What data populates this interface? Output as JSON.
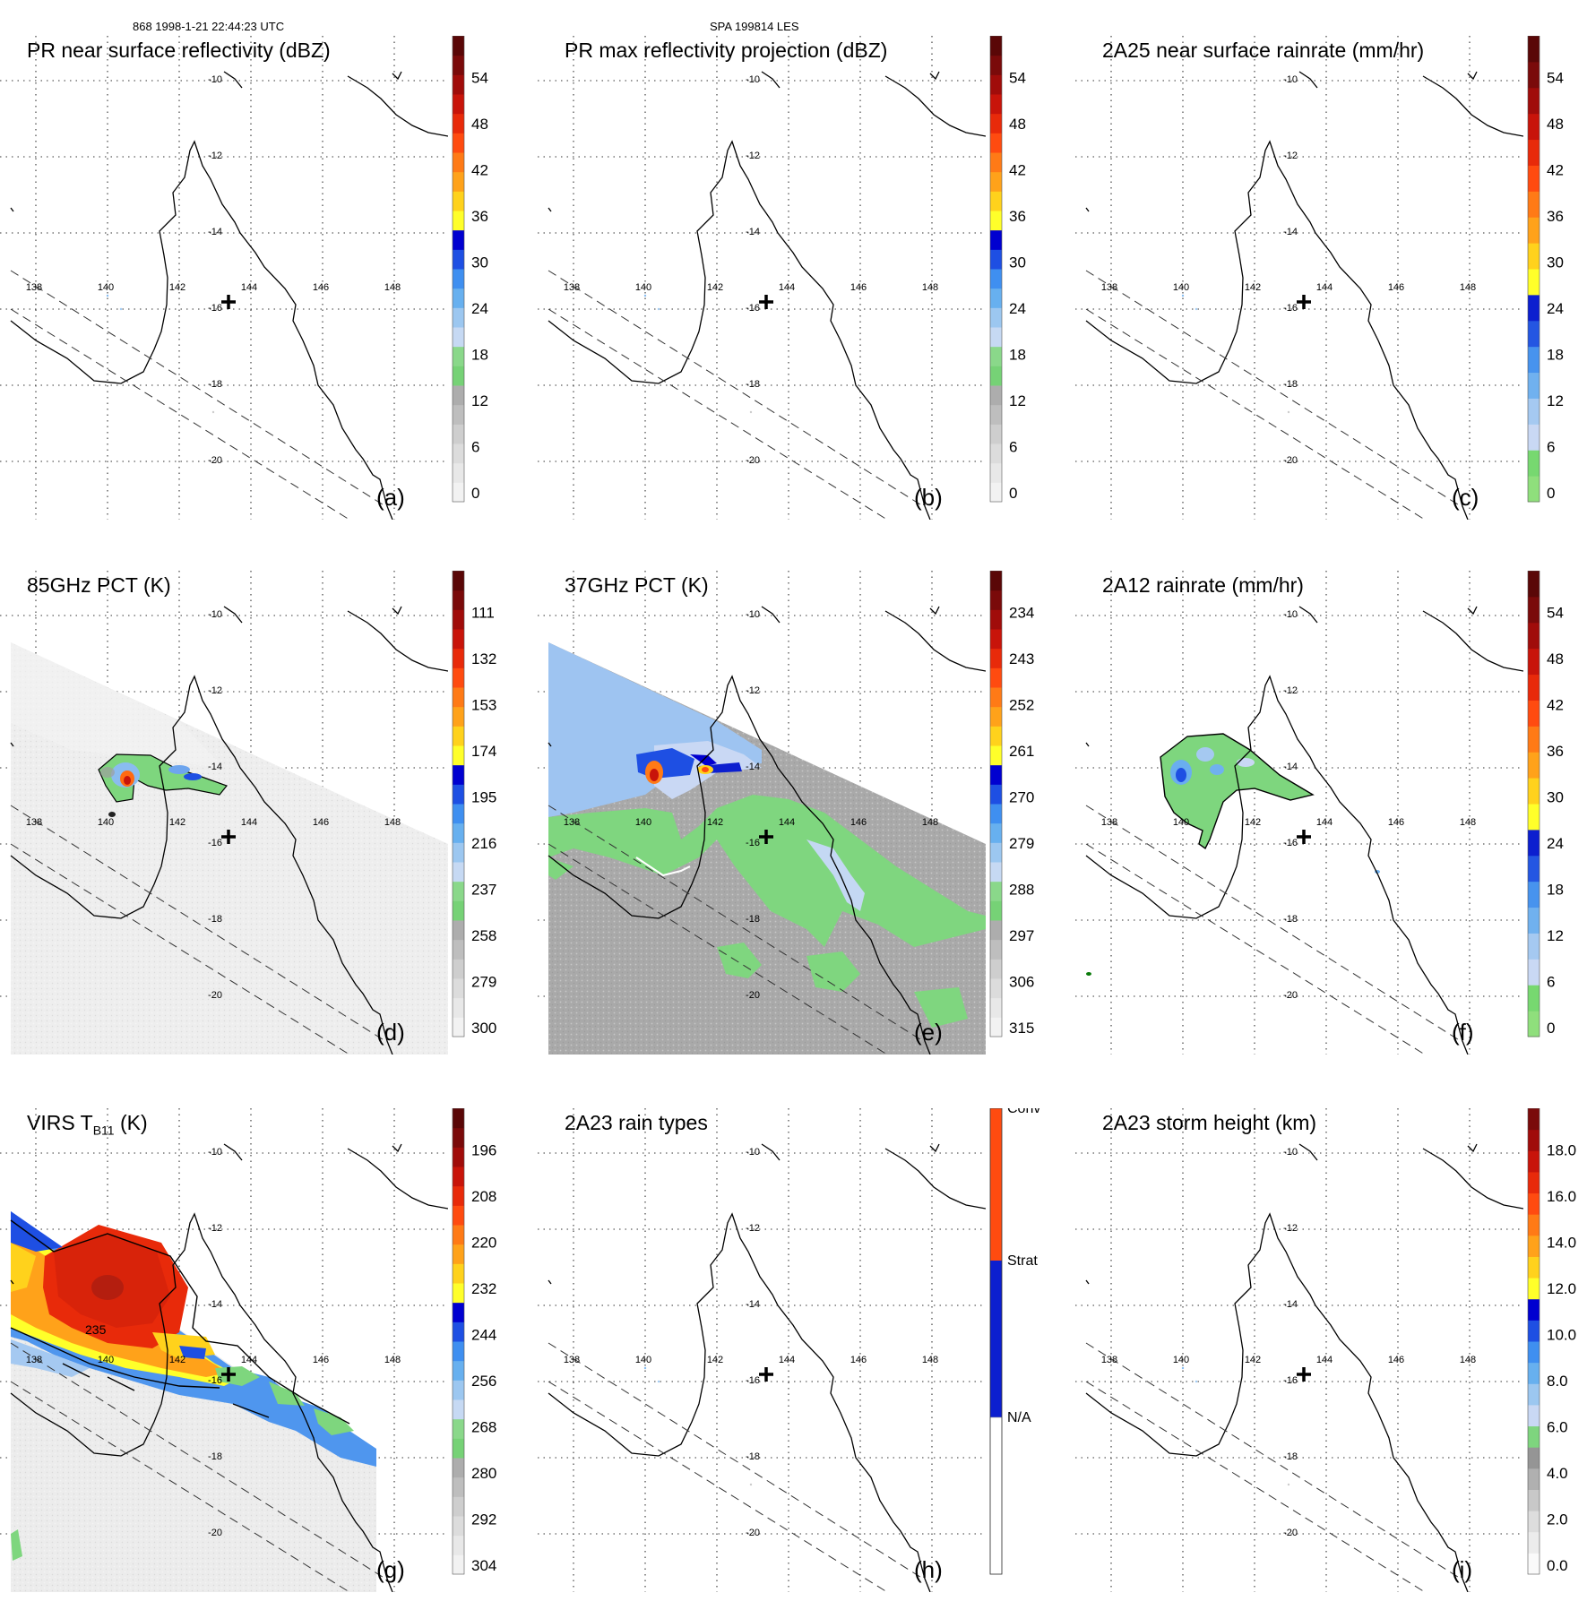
{
  "header": {
    "left": "868 1998-1-21 22:44:23 UTC",
    "center": "SPA 199814 LES"
  },
  "map_labels": {
    "lons": [
      "138",
      "140",
      "142",
      "144",
      "146",
      "148"
    ],
    "lats": [
      "-10",
      "-12",
      "-14",
      "-16",
      "-18",
      "-20"
    ]
  },
  "colors": {
    "land": "#000000",
    "grid": "#000000",
    "storm_center_marker": "#000000"
  },
  "panels": [
    {
      "id": "a",
      "title": "PR near surface reflectivity (dBZ)",
      "label": "(a)",
      "cbar_type": "reflectivity",
      "ticks": [
        "0",
        "6",
        "12",
        "18",
        "24",
        "30",
        "36",
        "42",
        "48",
        "54"
      ],
      "field": "none"
    },
    {
      "id": "b",
      "title": "PR max reflectivity projection (dBZ)",
      "label": "(b)",
      "cbar_type": "reflectivity",
      "ticks": [
        "0",
        "6",
        "12",
        "18",
        "24",
        "30",
        "36",
        "42",
        "48",
        "54"
      ],
      "field": "none"
    },
    {
      "id": "c",
      "title": "2A25 near surface rainrate (mm/hr)",
      "label": "(c)",
      "cbar_type": "rain",
      "ticks": [
        "0",
        "6",
        "12",
        "18",
        "24",
        "30",
        "36",
        "42",
        "48",
        "54"
      ],
      "field": "none"
    },
    {
      "id": "d",
      "title": "85GHz PCT (K)",
      "label": "(d)",
      "cbar_type": "reflectivity",
      "ticks": [
        "300",
        "279",
        "258",
        "237",
        "216",
        "195",
        "174",
        "153",
        "132",
        "111"
      ],
      "field": "pct85"
    },
    {
      "id": "e",
      "title": "37GHz PCT (K)",
      "label": "(e)",
      "cbar_type": "reflectivity",
      "ticks": [
        "315",
        "306",
        "297",
        "288",
        "279",
        "270",
        "261",
        "252",
        "243",
        "234"
      ],
      "field": "pct37"
    },
    {
      "id": "f",
      "title": "2A12 rainrate (mm/hr)",
      "label": "(f)",
      "cbar_type": "rain",
      "ticks": [
        "0",
        "6",
        "12",
        "18",
        "24",
        "30",
        "36",
        "42",
        "48",
        "54"
      ],
      "field": "rain12"
    },
    {
      "id": "g",
      "title_main": "VIRS T",
      "title_sub": "B11",
      "title_end": " (K)",
      "label": "(g)",
      "cbar_type": "reflectivity",
      "ticks": [
        "304",
        "292",
        "280",
        "268",
        "256",
        "244",
        "232",
        "220",
        "208",
        "196"
      ],
      "field": "virs",
      "contour_label": "235"
    },
    {
      "id": "h",
      "title": "2A23 rain types",
      "label": "(h)",
      "cbar_type": "raintype",
      "ticks": [
        "N/A",
        "Strat",
        "Conv"
      ],
      "field": "none"
    },
    {
      "id": "i",
      "title": "2A23 storm height (km)",
      "label": "(i)",
      "cbar_type": "height",
      "ticks": [
        "0.0",
        "2.0",
        "4.0",
        "6.0",
        "8.0",
        "10.0",
        "12.0",
        "14.0",
        "16.0",
        "18.0"
      ],
      "field": "none"
    }
  ]
}
